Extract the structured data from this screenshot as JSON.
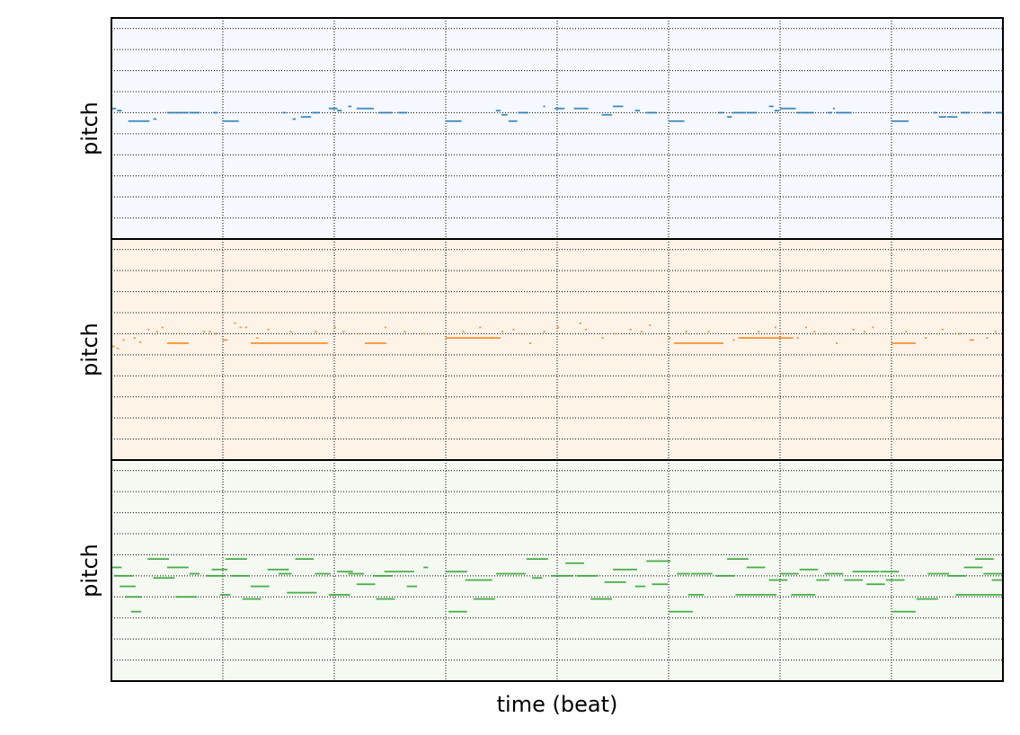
{
  "figure": {
    "xlabel": "time (beat)"
  },
  "chart_data": [
    {
      "type": "pianoroll",
      "title": "",
      "ylabel": "pitch",
      "color": "#1f77b4",
      "background": "#f5f9ff",
      "xlim": [
        0,
        64
      ],
      "beat_grid": [
        0,
        8,
        16,
        24,
        32,
        40,
        48,
        56,
        64
      ],
      "ylim": [
        0,
        21
      ],
      "pitch_grid": [
        2,
        4,
        6,
        8,
        10,
        12,
        14,
        16,
        18,
        20
      ],
      "notes": [
        [
          0.0,
          0.4,
          12.4
        ],
        [
          0.4,
          0.8,
          12.2
        ],
        [
          1.2,
          2.8,
          11.2
        ],
        [
          3.0,
          3.3,
          11.4
        ],
        [
          4.0,
          5.6,
          12.0
        ],
        [
          5.6,
          6.4,
          12.0
        ],
        [
          7.3,
          7.7,
          12.0
        ],
        [
          8.0,
          9.2,
          11.2
        ],
        [
          12.3,
          12.6,
          12.0
        ],
        [
          13.0,
          13.3,
          11.4
        ],
        [
          13.6,
          14.4,
          11.6
        ],
        [
          14.4,
          15.0,
          12.0
        ],
        [
          15.6,
          16.3,
          12.4
        ],
        [
          16.2,
          16.6,
          12.2
        ],
        [
          17.0,
          17.3,
          12.6
        ],
        [
          17.6,
          18.9,
          12.4
        ],
        [
          19.2,
          20.2,
          12.0
        ],
        [
          20.6,
          21.3,
          12.0
        ],
        [
          24.0,
          25.2,
          11.2
        ],
        [
          27.6,
          28.0,
          12.2
        ],
        [
          28.0,
          28.5,
          11.8
        ],
        [
          28.5,
          29.2,
          11.2
        ],
        [
          29.2,
          30.0,
          12.0
        ],
        [
          31.0,
          31.2,
          12.6
        ],
        [
          31.8,
          32.6,
          12.4
        ],
        [
          33.2,
          34.3,
          12.4
        ],
        [
          35.2,
          36.0,
          11.8
        ],
        [
          36.0,
          36.8,
          12.6
        ],
        [
          37.6,
          38.0,
          12.2
        ],
        [
          38.4,
          39.2,
          12.0
        ],
        [
          40.0,
          41.2,
          11.2
        ],
        [
          43.6,
          44.0,
          12.0
        ],
        [
          44.2,
          44.6,
          11.6
        ],
        [
          44.6,
          45.6,
          12.0
        ],
        [
          45.6,
          46.4,
          12.0
        ],
        [
          47.2,
          47.6,
          12.6
        ],
        [
          47.6,
          48.0,
          12.2
        ],
        [
          48.0,
          49.2,
          12.4
        ],
        [
          49.2,
          50.5,
          12.0
        ],
        [
          51.4,
          51.8,
          12.0
        ],
        [
          51.8,
          52.0,
          12.4
        ],
        [
          52.0,
          53.2,
          12.0
        ],
        [
          56.0,
          57.3,
          11.2
        ],
        [
          59.0,
          59.3,
          12.0
        ],
        [
          59.4,
          60.0,
          11.6
        ],
        [
          60.0,
          60.8,
          11.6
        ],
        [
          61.0,
          61.7,
          12.0
        ],
        [
          62.6,
          63.2,
          12.0
        ],
        [
          63.5,
          64.0,
          12.0
        ]
      ]
    },
    {
      "type": "pianoroll",
      "title": "",
      "ylabel": "pitch",
      "color": "#ff7f0e",
      "background": "#fff3e8",
      "xlim": [
        0,
        64
      ],
      "beat_grid": [
        0,
        8,
        16,
        24,
        32,
        40,
        48,
        56,
        64
      ],
      "ylim": [
        0,
        21
      ],
      "pitch_grid": [
        2,
        4,
        6,
        8,
        10,
        12,
        14,
        16,
        18,
        20
      ],
      "notes": [
        [
          0.0,
          0.3,
          10.8
        ],
        [
          0.4,
          0.6,
          10.6
        ],
        [
          0.8,
          1.0,
          11.4
        ],
        [
          1.6,
          1.8,
          11.6
        ],
        [
          2.0,
          2.2,
          11.2
        ],
        [
          2.6,
          2.8,
          12.4
        ],
        [
          3.2,
          3.4,
          12.2
        ],
        [
          3.6,
          3.8,
          12.6
        ],
        [
          4.0,
          5.6,
          11.1
        ],
        [
          5.0,
          5.2,
          12.0
        ],
        [
          6.6,
          6.8,
          12.2
        ],
        [
          7.0,
          7.2,
          12.2
        ],
        [
          7.4,
          7.6,
          12.0
        ],
        [
          8.0,
          8.4,
          11.4
        ],
        [
          8.8,
          9.0,
          13.0
        ],
        [
          9.2,
          9.4,
          12.6
        ],
        [
          9.6,
          9.8,
          12.6
        ],
        [
          10.0,
          15.6,
          11.1
        ],
        [
          10.4,
          10.6,
          11.6
        ],
        [
          11.2,
          11.4,
          12.4
        ],
        [
          12.8,
          13.0,
          12.2
        ],
        [
          14.6,
          14.8,
          12.2
        ],
        [
          16.0,
          16.2,
          12.6
        ],
        [
          16.6,
          16.8,
          12.2
        ],
        [
          17.6,
          17.8,
          12.0
        ],
        [
          18.2,
          19.8,
          11.1
        ],
        [
          19.6,
          19.8,
          12.6
        ],
        [
          21.0,
          21.2,
          12.2
        ],
        [
          22.4,
          22.6,
          12.0
        ],
        [
          24.0,
          28.0,
          11.6
        ],
        [
          25.2,
          25.4,
          12.2
        ],
        [
          26.4,
          26.6,
          12.6
        ],
        [
          27.2,
          27.4,
          11.6
        ],
        [
          28.0,
          28.2,
          12.2
        ],
        [
          28.8,
          29.0,
          12.4
        ],
        [
          29.4,
          29.6,
          12.0
        ],
        [
          30.0,
          30.2,
          11.1
        ],
        [
          31.0,
          31.2,
          12.2
        ],
        [
          32.0,
          32.2,
          12.6
        ],
        [
          33.6,
          33.8,
          13.0
        ],
        [
          34.0,
          34.2,
          12.4
        ],
        [
          35.2,
          35.4,
          11.6
        ],
        [
          36.0,
          36.2,
          12.0
        ],
        [
          37.2,
          37.4,
          12.4
        ],
        [
          38.0,
          38.2,
          12.2
        ],
        [
          38.6,
          38.8,
          12.8
        ],
        [
          40.0,
          40.2,
          11.6
        ],
        [
          40.4,
          44.0,
          11.1
        ],
        [
          41.2,
          41.4,
          12.2
        ],
        [
          42.8,
          43.0,
          12.2
        ],
        [
          44.6,
          44.8,
          11.4
        ],
        [
          45.0,
          49.0,
          11.6
        ],
        [
          46.4,
          46.6,
          12.2
        ],
        [
          47.6,
          47.8,
          12.6
        ],
        [
          48.0,
          48.2,
          12.0
        ],
        [
          49.2,
          49.4,
          11.6
        ],
        [
          49.8,
          50.0,
          12.6
        ],
        [
          50.4,
          50.6,
          12.2
        ],
        [
          51.2,
          51.4,
          12.0
        ],
        [
          52.0,
          52.2,
          11.1
        ],
        [
          53.2,
          53.4,
          12.4
        ],
        [
          54.0,
          54.2,
          12.2
        ],
        [
          54.6,
          54.8,
          12.6
        ],
        [
          56.0,
          57.8,
          11.1
        ],
        [
          57.0,
          57.2,
          12.2
        ],
        [
          58.4,
          58.6,
          11.6
        ],
        [
          59.6,
          59.8,
          12.4
        ],
        [
          60.8,
          61.0,
          12.0
        ],
        [
          61.6,
          62.0,
          11.4
        ],
        [
          62.8,
          63.0,
          11.6
        ],
        [
          63.4,
          63.6,
          12.2
        ]
      ]
    },
    {
      "type": "pianoroll",
      "title": "",
      "ylabel": "pitch",
      "color": "#2ca02c",
      "background": "#f4faf1",
      "xlim": [
        0,
        64
      ],
      "beat_grid": [
        0,
        8,
        16,
        24,
        32,
        40,
        48,
        56,
        64
      ],
      "ylim": [
        0,
        21
      ],
      "pitch_grid": [
        2,
        4,
        6,
        8,
        10,
        12,
        14,
        16,
        18,
        20
      ],
      "notes": [
        [
          0.0,
          0.8,
          10.8
        ],
        [
          0.2,
          1.6,
          10.0
        ],
        [
          0.6,
          1.8,
          9.0
        ],
        [
          1.0,
          2.2,
          8.0
        ],
        [
          1.4,
          2.2,
          6.6
        ],
        [
          2.6,
          4.2,
          11.6
        ],
        [
          3.0,
          4.6,
          9.8
        ],
        [
          4.0,
          5.6,
          10.8
        ],
        [
          4.6,
          6.2,
          8.0
        ],
        [
          5.6,
          6.4,
          10.2
        ],
        [
          6.8,
          8.2,
          10.0
        ],
        [
          7.2,
          8.4,
          10.6
        ],
        [
          7.8,
          8.6,
          8.2
        ],
        [
          8.6,
          10.0,
          10.0
        ],
        [
          8.2,
          9.8,
          11.6
        ],
        [
          9.4,
          10.8,
          7.8
        ],
        [
          10.0,
          11.4,
          9.0
        ],
        [
          11.2,
          12.8,
          10.6
        ],
        [
          12.0,
          13.0,
          10.2
        ],
        [
          12.6,
          14.8,
          8.4
        ],
        [
          13.2,
          14.6,
          11.6
        ],
        [
          14.6,
          15.8,
          10.2
        ],
        [
          15.6,
          17.2,
          8.2
        ],
        [
          16.2,
          17.4,
          10.4
        ],
        [
          17.0,
          18.2,
          10.2
        ],
        [
          17.6,
          19.0,
          9.2
        ],
        [
          18.8,
          20.2,
          10.0
        ],
        [
          19.0,
          20.4,
          7.8
        ],
        [
          19.6,
          21.8,
          10.4
        ],
        [
          21.2,
          22.0,
          9.0
        ],
        [
          22.4,
          22.8,
          10.8
        ],
        [
          24.0,
          25.6,
          10.4
        ],
        [
          24.2,
          25.6,
          6.6
        ],
        [
          25.4,
          27.4,
          9.6
        ],
        [
          26.0,
          27.6,
          7.8
        ],
        [
          27.6,
          29.8,
          10.2
        ],
        [
          29.8,
          31.4,
          11.6
        ],
        [
          30.2,
          31.0,
          9.8
        ],
        [
          31.6,
          33.2,
          10.0
        ],
        [
          32.6,
          34.0,
          11.2
        ],
        [
          33.4,
          35.0,
          10.0
        ],
        [
          34.4,
          36.0,
          7.8
        ],
        [
          35.4,
          37.0,
          9.4
        ],
        [
          36.0,
          37.8,
          10.6
        ],
        [
          37.6,
          38.4,
          9.0
        ],
        [
          38.4,
          40.2,
          11.4
        ],
        [
          38.8,
          40.0,
          9.2
        ],
        [
          40.0,
          41.8,
          6.6
        ],
        [
          40.6,
          41.6,
          10.2
        ],
        [
          41.4,
          42.6,
          8.2
        ],
        [
          41.6,
          43.2,
          10.2
        ],
        [
          43.4,
          44.8,
          10.0
        ],
        [
          44.2,
          45.8,
          11.6
        ],
        [
          44.8,
          47.8,
          8.2
        ],
        [
          45.6,
          47.0,
          10.8
        ],
        [
          47.2,
          48.6,
          9.6
        ],
        [
          48.0,
          49.4,
          10.2
        ],
        [
          48.8,
          50.6,
          8.2
        ],
        [
          49.4,
          50.8,
          10.6
        ],
        [
          50.6,
          51.6,
          9.6
        ],
        [
          51.2,
          52.6,
          10.2
        ],
        [
          52.6,
          54.0,
          9.6
        ],
        [
          53.2,
          55.2,
          10.4
        ],
        [
          54.2,
          55.6,
          9.2
        ],
        [
          55.2,
          56.6,
          10.4
        ],
        [
          55.6,
          57.0,
          9.6
        ],
        [
          56.0,
          57.8,
          6.6
        ],
        [
          57.8,
          59.4,
          7.8
        ],
        [
          58.6,
          60.2,
          10.2
        ],
        [
          60.0,
          61.4,
          10.0
        ],
        [
          61.2,
          62.6,
          10.8
        ],
        [
          62.0,
          63.4,
          11.6
        ],
        [
          62.6,
          64.0,
          10.2
        ],
        [
          63.2,
          64.0,
          9.6
        ],
        [
          60.6,
          64.0,
          8.2
        ]
      ]
    }
  ]
}
